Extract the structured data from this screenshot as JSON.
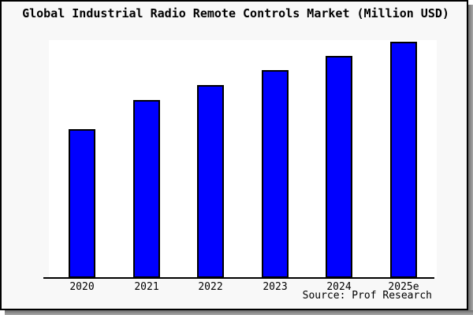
{
  "title": "Global Industrial Radio Remote Controls Market (Million USD)",
  "source_text": "Source: Prof Research",
  "colors": {
    "bar_fill": "#0000ff",
    "bar_border": "#000000",
    "canvas_background": "#f8f8f8",
    "plot_background": "#ffffff",
    "frame_border": "#000000",
    "axis_line": "#000000",
    "shadow": "#8c8c8c",
    "text": "#000000"
  },
  "chart_data": {
    "type": "bar",
    "title": "Global Industrial Radio Remote Controls Market (Million USD)",
    "categories": [
      "2020",
      "2021",
      "2022",
      "2023",
      "2024",
      "2025e"
    ],
    "values": [
      62.8,
      75.1,
      81.4,
      87.7,
      93.7,
      99.7
    ],
    "values_note": "No y-axis ticks or data labels are shown in the image; values are relative bar heights indexed so the tallest (2025e) is ~100.",
    "xlabel": "",
    "ylabel": "",
    "ylim": [
      0,
      100
    ],
    "grid": false,
    "legend": "none",
    "source": "Source: Prof Research"
  }
}
